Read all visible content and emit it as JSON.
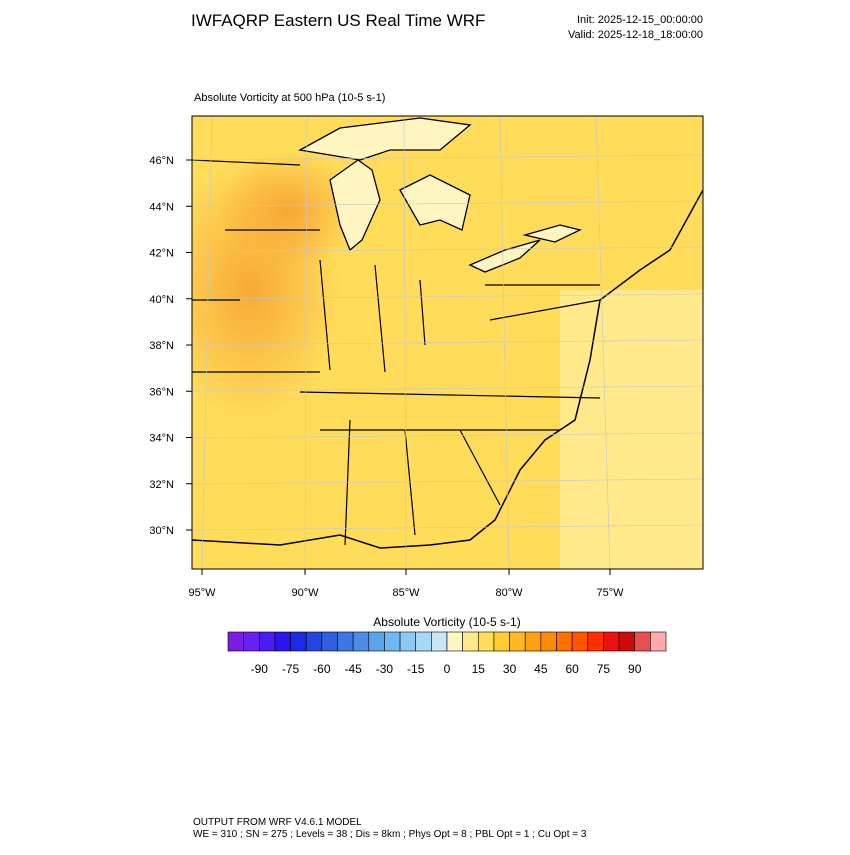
{
  "header": {
    "title": "IWFAQRP Eastern US Real Time WRF",
    "init": "Init: 2025-12-15_00:00:00",
    "valid": "Valid: 2025-12-18_18:00:00"
  },
  "map": {
    "title": "Absolute Vorticity at 500 hPa   (10-5 s-1)",
    "lat_labels": [
      "46°N",
      "44°N",
      "42°N",
      "40°N",
      "38°N",
      "36°N",
      "34°N",
      "32°N",
      "30°N"
    ],
    "lon_labels": [
      "95°W",
      "90°W",
      "85°W",
      "80°W",
      "75°W"
    ]
  },
  "colorbar": {
    "title": "Absolute Vorticity  (10-5 s-1)",
    "labels": [
      -90,
      -75,
      -60,
      -45,
      -30,
      -15,
      0,
      15,
      30,
      45,
      60,
      75,
      90
    ],
    "colors": [
      "#7a1fe0",
      "#6a20f0",
      "#4b1cf5",
      "#2a14f0",
      "#1a2ae8",
      "#2447e0",
      "#3060e0",
      "#3c78e4",
      "#4a8ee8",
      "#5aa4ec",
      "#70b8f0",
      "#8ccaf2",
      "#a8d8f4",
      "#c8e6f6",
      "#fff5c0",
      "#ffe98a",
      "#ffdc5a",
      "#ffcc33",
      "#ffb820",
      "#ffa010",
      "#ff8a08",
      "#ff7000",
      "#ff5500",
      "#ff3000",
      "#ee1010",
      "#cc0a0a",
      "#e85050",
      "#ffaaaa"
    ]
  },
  "footer": {
    "line1": "OUTPUT FROM WRF V4.6.1 MODEL",
    "line2": "WE = 310 ; SN = 275 ; Levels = 38 ; Dis = 8km ; Phys Opt = 8 ; PBL Opt = 1 ; Cu Opt = 3"
  }
}
